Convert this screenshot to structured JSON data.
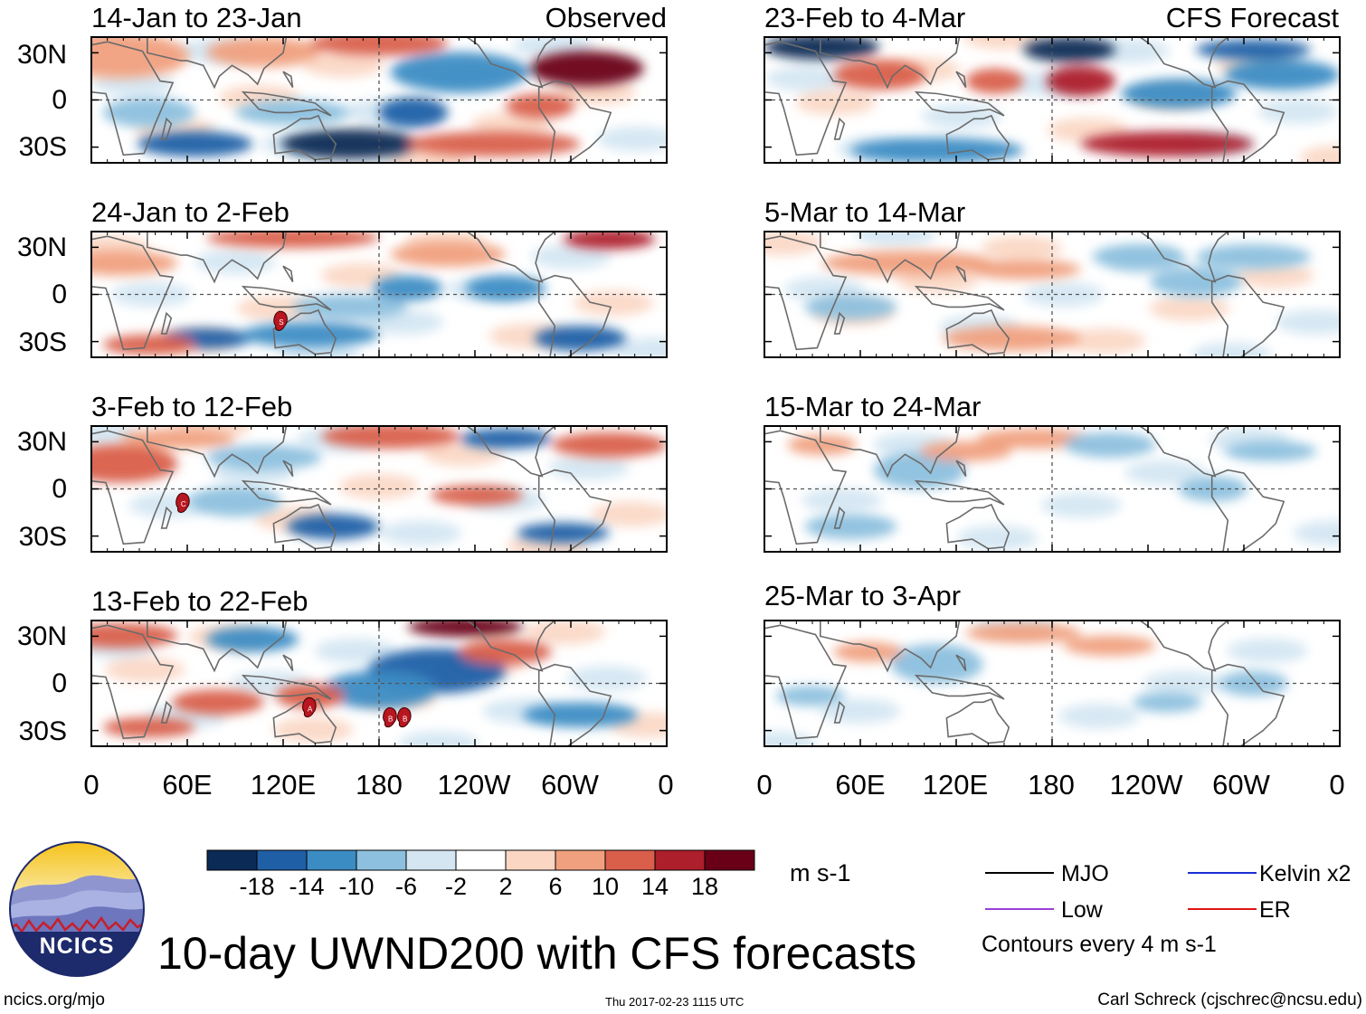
{
  "header": {
    "left_tag": "Observed",
    "right_tag": "CFS Forecast"
  },
  "chart_data": {
    "type": "heatmap",
    "variable": "UWND200",
    "title": "10-day UWND200 with CFS forecasts",
    "units": "m s-1",
    "contour_note": "Contours every 4 m s-1",
    "x_ticks": [
      "0",
      "60E",
      "120E",
      "180",
      "120W",
      "60W",
      "0"
    ],
    "y_ticks": [
      "30N",
      "0",
      "30S"
    ],
    "colorbar": {
      "labels": [
        "-18",
        "-14",
        "-10",
        "-6",
        "-2",
        "2",
        "6",
        "10",
        "14",
        "18"
      ],
      "colors": [
        "#0b2a55",
        "#1f5fa6",
        "#3c8cc4",
        "#8cc0de",
        "#d3e6f2",
        "#ffffff",
        "#fbd6c3",
        "#f0a07e",
        "#d95f4b",
        "#ad1f2b",
        "#6a0018"
      ]
    },
    "panels": [
      {
        "id": "obs1",
        "title": "14-Jan to 23-Jan",
        "kind": "observed",
        "cyclones": []
      },
      {
        "id": "obs2",
        "title": "24-Jan to 2-Feb",
        "kind": "observed",
        "cyclones": [
          "S"
        ]
      },
      {
        "id": "obs3",
        "title": "3-Feb to 12-Feb",
        "kind": "observed",
        "cyclones": [
          "C"
        ]
      },
      {
        "id": "obs4",
        "title": "13-Feb to 22-Feb",
        "kind": "observed",
        "cyclones": [
          "A",
          "B",
          "B"
        ]
      },
      {
        "id": "fc1",
        "title": "23-Feb to 4-Mar",
        "kind": "forecast",
        "cyclones": []
      },
      {
        "id": "fc2",
        "title": "5-Mar to 14-Mar",
        "kind": "forecast",
        "cyclones": []
      },
      {
        "id": "fc3",
        "title": "15-Mar to 24-Mar",
        "kind": "forecast",
        "cyclones": []
      },
      {
        "id": "fc4",
        "title": "25-Mar to 3-Apr",
        "kind": "forecast",
        "cyclones": []
      }
    ],
    "legend": [
      {
        "label": "MJO",
        "color": "#000000"
      },
      {
        "label": "Kelvin x2",
        "color": "#1a2fd6"
      },
      {
        "label": "Low",
        "color": "#9a3fd6"
      },
      {
        "label": "ER",
        "color": "#e01515"
      }
    ]
  },
  "logo": {
    "text": "NCICS"
  },
  "footer": {
    "url": "ncics.org/mjo",
    "timestamp": "Thu 2017-02-23 1115 UTC",
    "credit": "Carl Schreck (cjschrec@ncsu.edu)"
  }
}
